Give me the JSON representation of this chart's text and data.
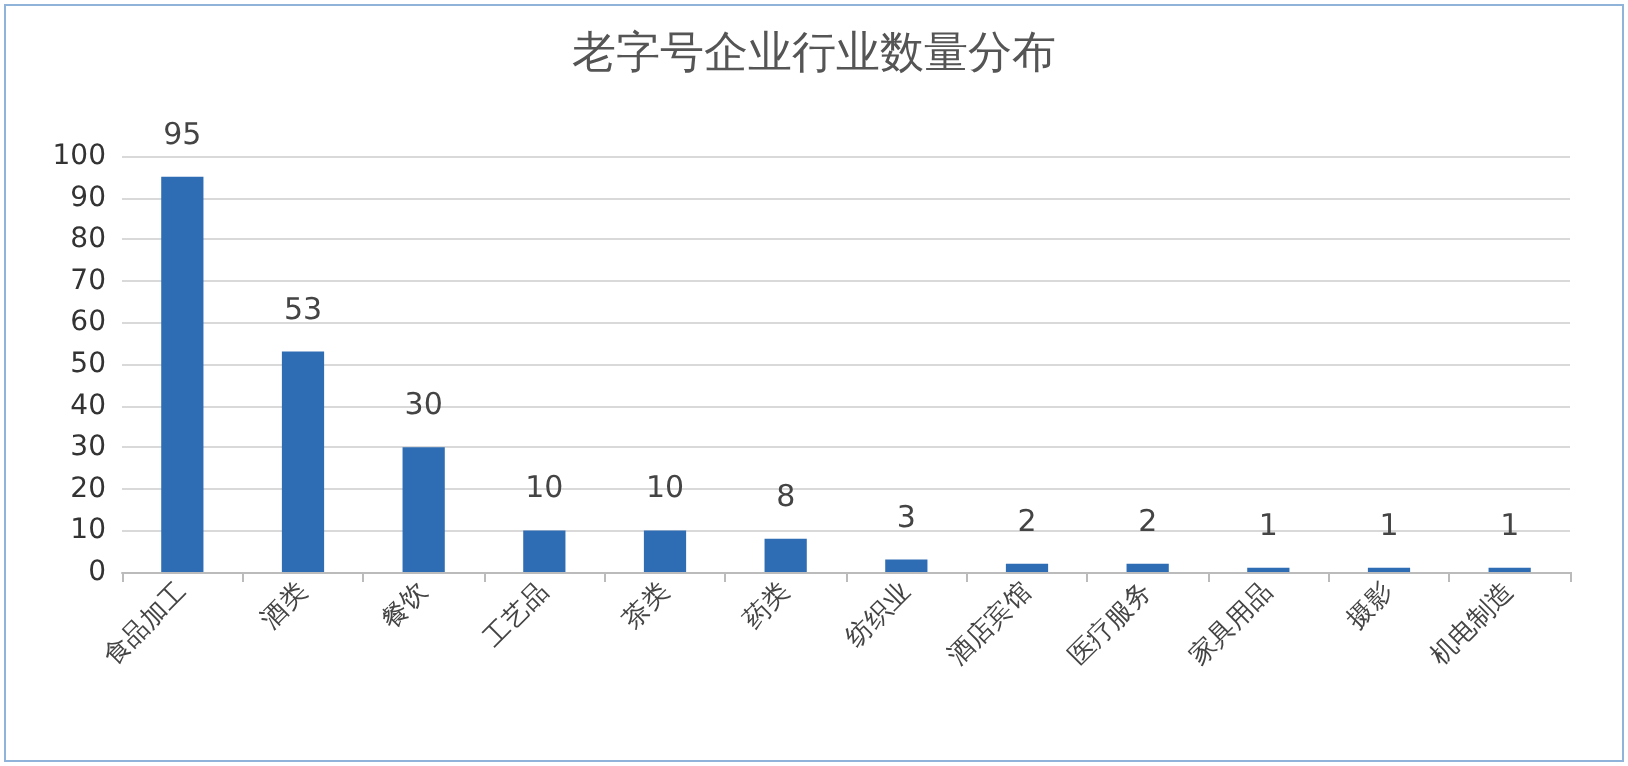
{
  "chart_data": {
    "type": "bar",
    "title": "老字号企业行业数量分布",
    "categories": [
      "食品加工",
      "酒类",
      "餐饮",
      "工艺品",
      "茶类",
      "药类",
      "纺织业",
      "酒店宾馆",
      "医疗服务",
      "家具用品",
      "摄影",
      "机电制造"
    ],
    "values": [
      95,
      53,
      30,
      10,
      10,
      8,
      3,
      2,
      2,
      1,
      1,
      1
    ],
    "color": "#2e6db4",
    "ylim": [
      0,
      100
    ],
    "yticks": [
      0,
      10,
      20,
      30,
      40,
      50,
      60,
      70,
      80,
      90,
      100
    ],
    "grid": "y",
    "data_labels": true
  }
}
